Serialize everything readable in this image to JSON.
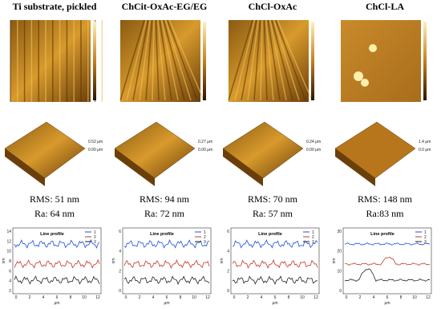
{
  "columns": [
    {
      "title": "Ti substrate, pickled",
      "height_labels": [
        "0.52 μm",
        "0.00 μm"
      ],
      "rms": "RMS: 51 nm",
      "ra": "Ra: 64 nm",
      "profile": {
        "title": "Line profile",
        "legend": [
          "1",
          "2",
          "3"
        ],
        "x_label": "μm",
        "y_label": "nm",
        "xticks": [
          "0",
          "2",
          "4",
          "6",
          "8",
          "10",
          "12"
        ],
        "yticks": [
          "2",
          "4",
          "6",
          "8",
          "10",
          "12",
          "14"
        ]
      }
    },
    {
      "title": "ChCit-OxAc-EG/EG",
      "height_labels": [
        "0.27 μm",
        "0.00 μm"
      ],
      "rms": "RMS: 94 nm",
      "ra": "Ra: 72 nm",
      "profile": {
        "title": "Line profile",
        "legend": [
          "1",
          "2",
          "3"
        ],
        "x_label": "μm",
        "y_label": "nm",
        "xticks": [
          "0",
          "2",
          "4",
          "6",
          "8",
          "10",
          "12"
        ],
        "yticks": [
          "0",
          "2",
          "4",
          "6"
        ]
      }
    },
    {
      "title": "ChCl-OxAc",
      "height_labels": [
        "0.24 μm",
        "0.00 μm"
      ],
      "rms": "RMS: 70 nm",
      "ra": "Ra: 57 nm",
      "profile": {
        "title": "Line profile",
        "legend": [
          "1",
          "2",
          "3"
        ],
        "x_label": "μm",
        "y_label": "nm",
        "xticks": [
          "0",
          "2",
          "4",
          "6",
          "8",
          "10",
          "12"
        ],
        "yticks": [
          "0",
          "2",
          "4",
          "6"
        ]
      }
    },
    {
      "title": "ChCl-LA",
      "height_labels": [
        "1.4 μm",
        "0.0 μm"
      ],
      "rms": "RMS: 148 nm",
      "ra": "Ra:83 nm",
      "profile": {
        "title": "Line profile",
        "legend": [
          "1",
          "2",
          "3"
        ],
        "x_label": "μm",
        "y_label": "nm",
        "xticks": [
          "0",
          "2",
          "4",
          "6",
          "8",
          "10",
          "12"
        ],
        "yticks": [
          "0",
          "10",
          "20",
          "30"
        ]
      }
    }
  ]
}
